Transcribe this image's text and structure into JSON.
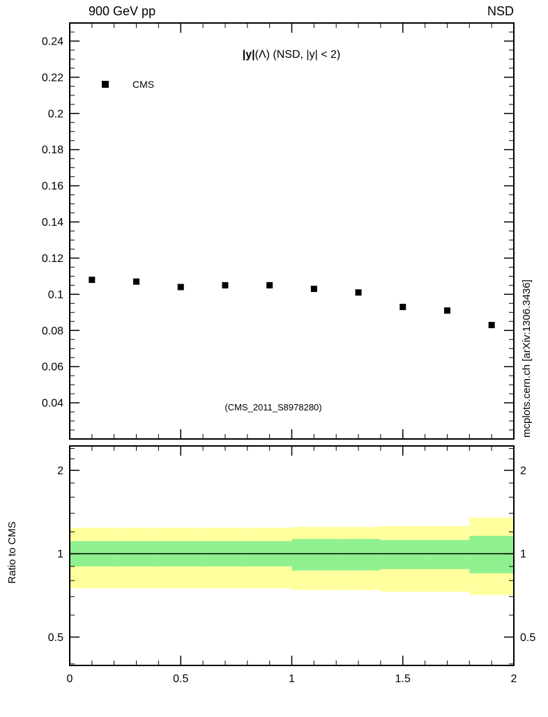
{
  "header": {
    "left": "900 GeV pp",
    "right": "NSD"
  },
  "watermark": "(CMS_2011_S8978280)",
  "side_note": "mcplots.cern.ch [arXiv:1306.3436]",
  "colors": {
    "outer_band": "#ffff9e",
    "inner_band": "#8ff08f",
    "marker": "#000000",
    "ratio_line": "#000000",
    "frame": "#000000",
    "watermark": "#aaaaaa",
    "side_note": "#888888"
  },
  "chart_data": [
    {
      "type": "scatter",
      "panel": "main",
      "title": "|y|(Λ) (NSD, |y| < 2)",
      "title_bold": "|y|",
      "title_rest": "(Λ) (NSD, |y| < 2)",
      "xlim": [
        0,
        2
      ],
      "ylim": [
        0.02,
        0.25
      ],
      "yticks": [
        0.04,
        0.06,
        0.08,
        0.1,
        0.12,
        0.14,
        0.16,
        0.18,
        0.2,
        0.22,
        0.24
      ],
      "y_minor_step": 0.005,
      "xticks": [
        0,
        0.5,
        1,
        1.5,
        2
      ],
      "x_minor_step": 0.1,
      "grid": false,
      "legend_position": "top-left-inside",
      "legend": [
        {
          "label": "CMS",
          "marker": "filled-square",
          "color": "#000000"
        }
      ],
      "series": [
        {
          "name": "CMS",
          "x": [
            0.1,
            0.3,
            0.5,
            0.7,
            0.9,
            1.1,
            1.3,
            1.5,
            1.7,
            1.9
          ],
          "y": [
            0.108,
            0.107,
            0.104,
            0.105,
            0.105,
            0.103,
            0.101,
            0.093,
            0.091,
            0.083
          ]
        }
      ]
    },
    {
      "type": "ratio-bands",
      "panel": "ratio",
      "ylabel": "Ratio to CMS",
      "yscale": "log",
      "xlim": [
        0,
        2
      ],
      "ylim": [
        0.395,
        2.45
      ],
      "yticks": [
        0.5,
        1,
        2
      ],
      "y_minor": [
        0.4,
        0.6,
        0.7,
        0.8,
        0.9,
        1.2,
        1.4,
        1.6,
        1.8,
        2.2,
        2.4
      ],
      "xticks": [
        0,
        0.5,
        1,
        1.5,
        2
      ],
      "x_minor_step": 0.1,
      "reference_line": 1,
      "bin_edges": [
        0,
        0.2,
        0.4,
        0.6,
        0.8,
        1.0,
        1.2,
        1.4,
        1.6,
        1.8,
        2.0
      ],
      "outer_band": [
        [
          0.75,
          1.24
        ],
        [
          0.75,
          1.24
        ],
        [
          0.75,
          1.24
        ],
        [
          0.75,
          1.24
        ],
        [
          0.75,
          1.24
        ],
        [
          0.74,
          1.25
        ],
        [
          0.74,
          1.25
        ],
        [
          0.73,
          1.26
        ],
        [
          0.73,
          1.26
        ],
        [
          0.71,
          1.35
        ]
      ],
      "inner_band": [
        [
          0.9,
          1.11
        ],
        [
          0.9,
          1.11
        ],
        [
          0.9,
          1.11
        ],
        [
          0.9,
          1.11
        ],
        [
          0.9,
          1.11
        ],
        [
          0.87,
          1.13
        ],
        [
          0.87,
          1.13
        ],
        [
          0.88,
          1.12
        ],
        [
          0.88,
          1.12
        ],
        [
          0.85,
          1.16
        ]
      ]
    }
  ]
}
